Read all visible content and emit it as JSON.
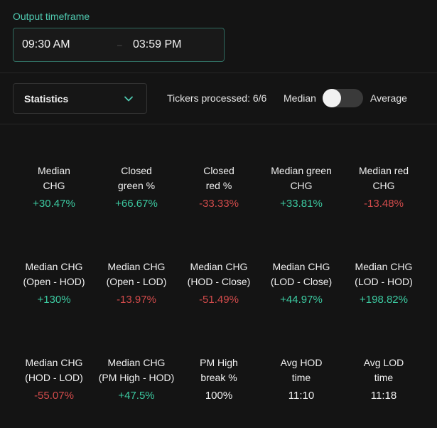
{
  "timeframe": {
    "label": "Output timeframe",
    "start": "09:30 AM",
    "separator": "–",
    "end": "03:59 PM"
  },
  "controls": {
    "select_value": "Statistics",
    "tickers_processed": "Tickers processed: 6/6",
    "toggle_left": "Median",
    "toggle_right": "Average"
  },
  "stats": [
    {
      "label": "Median\nCHG",
      "value": "+30.47%",
      "tone": "pos"
    },
    {
      "label": "Closed\ngreen %",
      "value": "+66.67%",
      "tone": "pos"
    },
    {
      "label": "Closed\nred %",
      "value": "-33.33%",
      "tone": "neg"
    },
    {
      "label": "Median green\nCHG",
      "value": "+33.81%",
      "tone": "pos"
    },
    {
      "label": "Median red\nCHG",
      "value": "-13.48%",
      "tone": "neg"
    },
    {
      "label": "Median CHG\n(Open - HOD)",
      "value": "+130%",
      "tone": "pos"
    },
    {
      "label": "Median CHG\n(Open - LOD)",
      "value": "-13.97%",
      "tone": "neg"
    },
    {
      "label": "Median CHG\n(HOD - Close)",
      "value": "-51.49%",
      "tone": "neg"
    },
    {
      "label": "Median CHG\n(LOD - Close)",
      "value": "+44.97%",
      "tone": "pos"
    },
    {
      "label": "Median CHG\n(LOD - HOD)",
      "value": "+198.82%",
      "tone": "pos"
    },
    {
      "label": "Median CHG\n(HOD - LOD)",
      "value": "-55.07%",
      "tone": "neg"
    },
    {
      "label": "Median CHG\n(PM High - HOD)",
      "value": "+47.5%",
      "tone": "pos"
    },
    {
      "label": "PM High\nbreak %",
      "value": "100%",
      "tone": "neu"
    },
    {
      "label": "Avg HOD\ntime",
      "value": "11:10",
      "tone": "neu"
    },
    {
      "label": "Avg LOD\ntime",
      "value": "11:18",
      "tone": "neu"
    }
  ],
  "colors": {
    "accent": "#4fc9b0",
    "positive": "#3cc9a0",
    "negative": "#d24b4b",
    "background": "#141414"
  }
}
